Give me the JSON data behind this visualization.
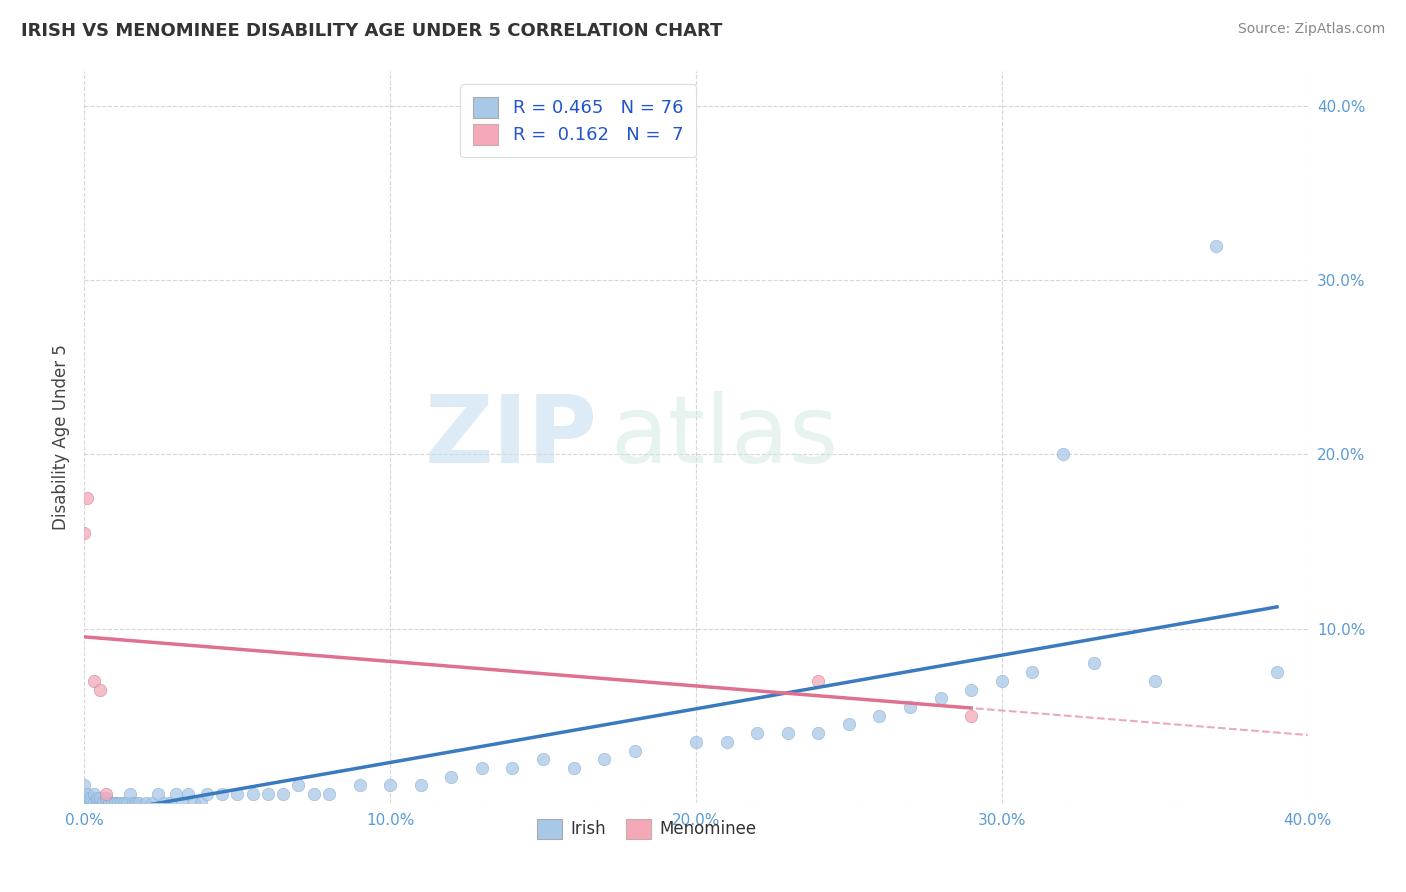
{
  "title": "IRISH VS MENOMINEE DISABILITY AGE UNDER 5 CORRELATION CHART",
  "source": "Source: ZipAtlas.com",
  "ylabel": "Disability Age Under 5",
  "watermark_zip": "ZIP",
  "watermark_atlas": "atlas",
  "xlim": [
    0.0,
    0.4
  ],
  "ylim": [
    0.0,
    0.42
  ],
  "irish_R": 0.465,
  "irish_N": 76,
  "menominee_R": 0.162,
  "menominee_N": 7,
  "irish_color": "#a8c8e8",
  "menominee_color": "#f4a8b8",
  "irish_line_color": "#3a7abf",
  "menominee_line_color": "#e07090",
  "background_color": "#ffffff",
  "grid_color": "#cccccc",
  "irish_x": [
    0.0,
    0.001,
    0.001,
    0.001,
    0.002,
    0.002,
    0.003,
    0.003,
    0.004,
    0.004,
    0.005,
    0.005,
    0.006,
    0.006,
    0.007,
    0.007,
    0.008,
    0.008,
    0.009,
    0.009,
    0.01,
    0.01,
    0.011,
    0.012,
    0.013,
    0.014,
    0.015,
    0.016,
    0.017,
    0.018,
    0.02,
    0.022,
    0.024,
    0.026,
    0.028,
    0.03,
    0.032,
    0.034,
    0.036,
    0.038,
    0.04,
    0.045,
    0.05,
    0.055,
    0.06,
    0.065,
    0.07,
    0.075,
    0.08,
    0.09,
    0.1,
    0.11,
    0.12,
    0.13,
    0.14,
    0.15,
    0.16,
    0.17,
    0.18,
    0.2,
    0.21,
    0.22,
    0.23,
    0.24,
    0.25,
    0.26,
    0.27,
    0.28,
    0.29,
    0.3,
    0.31,
    0.32,
    0.33,
    0.35,
    0.37,
    0.39
  ],
  "irish_y": [
    0.01,
    0.0,
    0.003,
    0.005,
    0.0,
    0.003,
    0.0,
    0.005,
    0.0,
    0.003,
    0.0,
    0.003,
    0.0,
    0.0,
    0.0,
    0.003,
    0.0,
    0.0,
    0.0,
    0.0,
    0.0,
    0.0,
    0.0,
    0.0,
    0.0,
    0.0,
    0.005,
    0.0,
    0.0,
    0.0,
    0.0,
    0.0,
    0.005,
    0.0,
    0.0,
    0.005,
    0.0,
    0.005,
    0.0,
    0.0,
    0.005,
    0.005,
    0.005,
    0.005,
    0.005,
    0.005,
    0.01,
    0.005,
    0.005,
    0.01,
    0.01,
    0.01,
    0.015,
    0.02,
    0.02,
    0.025,
    0.02,
    0.025,
    0.03,
    0.035,
    0.035,
    0.04,
    0.04,
    0.04,
    0.045,
    0.05,
    0.055,
    0.06,
    0.065,
    0.07,
    0.075,
    0.2,
    0.08,
    0.07,
    0.32,
    0.075
  ],
  "menominee_x": [
    0.0,
    0.001,
    0.003,
    0.005,
    0.007,
    0.24,
    0.29
  ],
  "menominee_y": [
    0.155,
    0.175,
    0.07,
    0.065,
    0.005,
    0.07,
    0.05
  ]
}
